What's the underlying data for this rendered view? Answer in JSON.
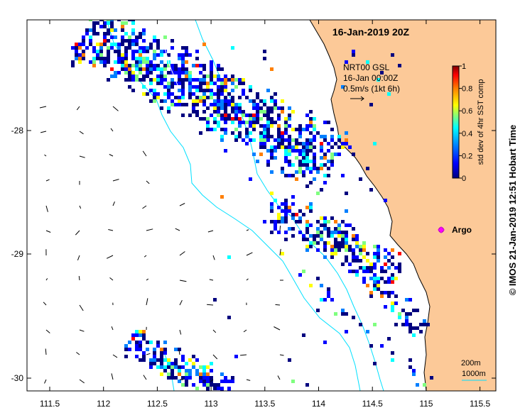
{
  "map": {
    "date_title": "16-Jan-2019 20Z",
    "overlay_lines": [
      "NRT00 GSL",
      "16-Jan 00:00Z",
      "0.5m/s (1kt 6h)"
    ],
    "colorbar": {
      "label": "std dev of 4hr SST comp",
      "ticks": [
        "0",
        "0.2",
        "0.4",
        "0.6",
        "0.8",
        "1"
      ],
      "colors": [
        "#00007f",
        "#0000ff",
        "#007fff",
        "#00ffff",
        "#7fff7f",
        "#ffff00",
        "#ff7f00",
        "#ff0000",
        "#7f0000"
      ]
    },
    "argo_label": "Argo",
    "depth_legend": [
      "200m",
      "1000m"
    ],
    "x_ticks": [
      "111.5",
      "112",
      "112.5",
      "113",
      "113.5",
      "114",
      "114.5",
      "115",
      "115.5"
    ],
    "y_ticks": [
      "-28",
      "-29",
      "-30"
    ],
    "credit": "©  IMOS 21-Jan-2019 12:51 Hobart Time",
    "land_color": "#fcc998",
    "isobath_color": "#00e0ff"
  }
}
